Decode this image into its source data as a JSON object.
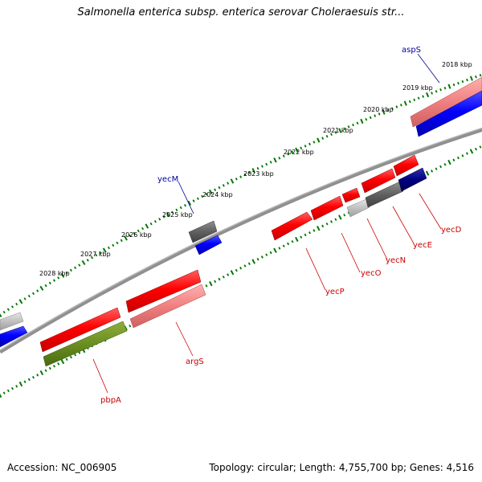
{
  "title": "Salmonella enterica subsp. enterica serovar Choleraesuis str...",
  "kbp_labels": [
    "2018 kbp",
    "2019 kbp",
    "2020 kbp",
    "2021 kbp",
    "2022 kbp",
    "2023 kbp",
    "2024 kbp",
    "2025 kbp",
    "2026 kbp",
    "2027 kbp",
    "2028 kbp"
  ],
  "genes": {
    "aspS": "aspS",
    "yecM": "yecM",
    "argS": "argS",
    "pbpA": "pbpA",
    "yecP": "yecP",
    "yecO": "yecO",
    "yecN": "yecN",
    "yecE": "yecE",
    "yecD": "yecD"
  },
  "footer": {
    "accession": "Accession: NC_006905",
    "topology": "Topology: circular; Length: 4,755,700 bp; Genes: 4,516"
  },
  "colors": {
    "forward_cds": "#ff0000",
    "reverse_cds": "#0000ff",
    "gene_bar": "#808080",
    "pbpA_bar": "#6b8e23",
    "tick": "#007700",
    "forward_label": "#cc0000",
    "reverse_label": "#000099"
  }
}
